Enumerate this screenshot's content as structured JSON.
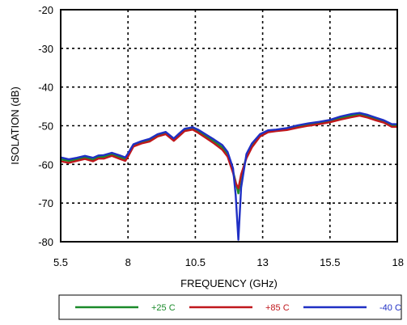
{
  "chart_data": {
    "type": "line",
    "title": "",
    "xlabel": "FREQUENCY (GHz)",
    "ylabel": "ISOLATION (dB)",
    "xlim": [
      5.5,
      18
    ],
    "ylim": [
      -80,
      -20
    ],
    "xticks": [
      5.5,
      8,
      10.5,
      13,
      15.5,
      18
    ],
    "xtick_labels": [
      "5.5",
      "8",
      "10.5",
      "13",
      "15.5",
      "18"
    ],
    "yticks": [
      -80,
      -70,
      -60,
      -50,
      -40,
      -30,
      -20
    ],
    "ytick_labels": [
      "-80",
      "-70",
      "-60",
      "-50",
      "-40",
      "-30",
      "-20"
    ],
    "grid": true,
    "legend_position": "bottom",
    "series": [
      {
        "name": "+25 C",
        "color": "#1a8a2a",
        "x": [
          5.5,
          5.8,
          6.1,
          6.4,
          6.7,
          6.9,
          7.1,
          7.4,
          7.7,
          7.9,
          8.0,
          8.2,
          8.5,
          8.8,
          9.1,
          9.4,
          9.7,
          9.9,
          10.1,
          10.4,
          10.6,
          10.9,
          11.2,
          11.5,
          11.7,
          11.9,
          12.0,
          12.1,
          12.2,
          12.4,
          12.6,
          12.9,
          13.2,
          13.5,
          13.9,
          14.3,
          14.7,
          15.1,
          15.5,
          15.9,
          16.3,
          16.6,
          16.9,
          17.2,
          17.5,
          17.8,
          18.0
        ],
        "y": [
          -58.7,
          -59.1,
          -58.7,
          -58.2,
          -58.8,
          -58.1,
          -58.0,
          -57.4,
          -58.1,
          -58.6,
          -57.6,
          -55.1,
          -54.3,
          -53.8,
          -52.5,
          -51.9,
          -53.6,
          -52.4,
          -51.1,
          -50.8,
          -51.4,
          -52.8,
          -54.1,
          -55.6,
          -57.5,
          -61.8,
          -64.5,
          -67.5,
          -63.0,
          -58.0,
          -55.1,
          -52.5,
          -51.5,
          -51.2,
          -50.8,
          -50.2,
          -49.7,
          -49.3,
          -48.8,
          -48.0,
          -47.4,
          -47.1,
          -47.6,
          -48.2,
          -48.8,
          -49.9,
          -49.9
        ]
      },
      {
        "name": "+85 C",
        "color": "#c0171c",
        "x": [
          5.5,
          5.8,
          6.1,
          6.4,
          6.7,
          6.9,
          7.1,
          7.4,
          7.7,
          7.9,
          8.0,
          8.2,
          8.5,
          8.8,
          9.1,
          9.4,
          9.7,
          9.9,
          10.1,
          10.4,
          10.6,
          10.9,
          11.2,
          11.5,
          11.7,
          11.9,
          12.0,
          12.1,
          12.2,
          12.4,
          12.6,
          12.9,
          13.2,
          13.5,
          13.9,
          14.3,
          14.7,
          15.1,
          15.5,
          15.9,
          16.3,
          16.6,
          16.9,
          17.2,
          17.5,
          17.8,
          18.0
        ],
        "y": [
          -59.2,
          -59.6,
          -59.1,
          -58.6,
          -59.2,
          -58.5,
          -58.5,
          -57.8,
          -58.6,
          -59.1,
          -58.0,
          -55.4,
          -54.6,
          -54.1,
          -52.8,
          -52.2,
          -53.9,
          -52.7,
          -51.4,
          -51.0,
          -51.8,
          -53.2,
          -54.6,
          -56.2,
          -58.0,
          -62.2,
          -64.8,
          -66.2,
          -62.6,
          -58.4,
          -55.6,
          -52.8,
          -51.7,
          -51.4,
          -51.1,
          -50.5,
          -50.0,
          -49.6,
          -49.1,
          -48.4,
          -47.8,
          -47.4,
          -47.9,
          -48.6,
          -49.2,
          -50.3,
          -50.3
        ]
      },
      {
        "name": "-40 C",
        "color": "#1f2fc4",
        "x": [
          5.5,
          5.8,
          6.1,
          6.4,
          6.7,
          6.9,
          7.1,
          7.4,
          7.7,
          7.9,
          8.0,
          8.2,
          8.5,
          8.8,
          9.1,
          9.4,
          9.7,
          9.9,
          10.1,
          10.4,
          10.6,
          10.9,
          11.2,
          11.5,
          11.7,
          11.9,
          12.0,
          12.1,
          12.2,
          12.4,
          12.6,
          12.9,
          13.2,
          13.5,
          13.9,
          14.3,
          14.7,
          15.1,
          15.5,
          15.9,
          16.3,
          16.6,
          16.9,
          17.2,
          17.5,
          17.8,
          18.0
        ],
        "y": [
          -58.2,
          -58.7,
          -58.3,
          -57.8,
          -58.3,
          -57.7,
          -57.6,
          -57.0,
          -57.7,
          -58.2,
          -57.2,
          -54.8,
          -54.0,
          -53.4,
          -52.2,
          -51.6,
          -53.3,
          -52.0,
          -50.8,
          -50.4,
          -51.0,
          -52.3,
          -53.6,
          -55.0,
          -56.8,
          -61.0,
          -68.0,
          -79.5,
          -66.0,
          -57.3,
          -54.6,
          -52.2,
          -51.2,
          -51.0,
          -50.6,
          -49.9,
          -49.4,
          -49.0,
          -48.5,
          -47.6,
          -47.0,
          -46.7,
          -47.2,
          -47.9,
          -48.6,
          -49.6,
          -49.6
        ]
      }
    ]
  }
}
